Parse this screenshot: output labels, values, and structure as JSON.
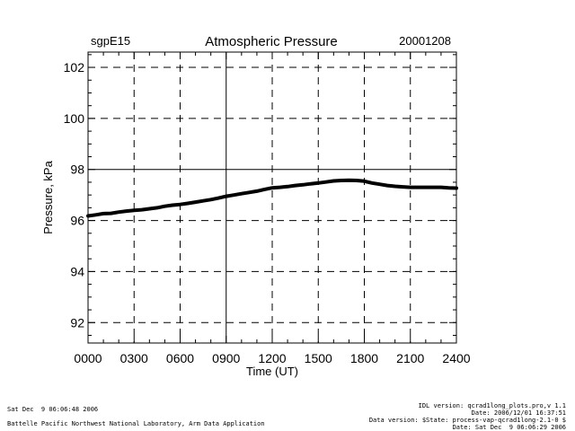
{
  "header": {
    "site": "sgpE15",
    "date": "20001208"
  },
  "footer": {
    "timestamp": "Sat Dec  9 06:06:48 2006",
    "lab": "Battelle Pacific Northwest National Laboratory, Arm Data Application",
    "idl_version": "IDL version: qcrad1long_plots.pro,v 1.1",
    "date_line": "Date: 2006/12/01 16:37:51",
    "data_version": "Data version: $State: process-vap-qcrad1long-2.1-0 $",
    "date_sat": "Date: Sat Dec  9 06:06:29 2006"
  },
  "chart_data": {
    "type": "line",
    "title": "Atmospheric Pressure",
    "xlabel": "Time (UT)",
    "ylabel": "Pressure, kPa",
    "xlim": [
      0,
      24
    ],
    "ylim": [
      91.2,
      102.6
    ],
    "grid": true,
    "x_ticks": [
      0,
      3,
      6,
      9,
      12,
      15,
      18,
      21,
      24
    ],
    "x_tick_labels": [
      "0000",
      "0300",
      "0600",
      "0900",
      "1200",
      "1500",
      "1800",
      "2100",
      "2400"
    ],
    "y_ticks": [
      92,
      94,
      96,
      98,
      100,
      102
    ],
    "y_tick_labels": [
      "92",
      "94",
      "96",
      "98",
      "100",
      "102"
    ],
    "series": [
      {
        "color": "#000000",
        "x": [
          0,
          0.5,
          1,
          1.5,
          2,
          2.5,
          3,
          3.5,
          4,
          4.5,
          5,
          5.5,
          6,
          6.5,
          7,
          7.5,
          8,
          8.5,
          9,
          9.5,
          10,
          10.5,
          11,
          11.5,
          12,
          12.5,
          13,
          13.5,
          14,
          14.5,
          15,
          15.5,
          16,
          16.5,
          17,
          17.5,
          18,
          18.5,
          19,
          19.5,
          20,
          20.5,
          21,
          21.5,
          22,
          22.5,
          23,
          23.5,
          24
        ],
        "y": [
          96.18,
          96.22,
          96.27,
          96.28,
          96.33,
          96.37,
          96.4,
          96.42,
          96.46,
          96.5,
          96.56,
          96.6,
          96.63,
          96.67,
          96.72,
          96.77,
          96.82,
          96.88,
          96.95,
          97.0,
          97.05,
          97.1,
          97.15,
          97.22,
          97.28,
          97.3,
          97.33,
          97.37,
          97.4,
          97.44,
          97.47,
          97.51,
          97.55,
          97.57,
          97.58,
          97.57,
          97.54,
          97.47,
          97.42,
          97.37,
          97.34,
          97.32,
          97.3,
          97.3,
          97.3,
          97.3,
          97.3,
          97.28,
          97.27
        ]
      }
    ]
  }
}
